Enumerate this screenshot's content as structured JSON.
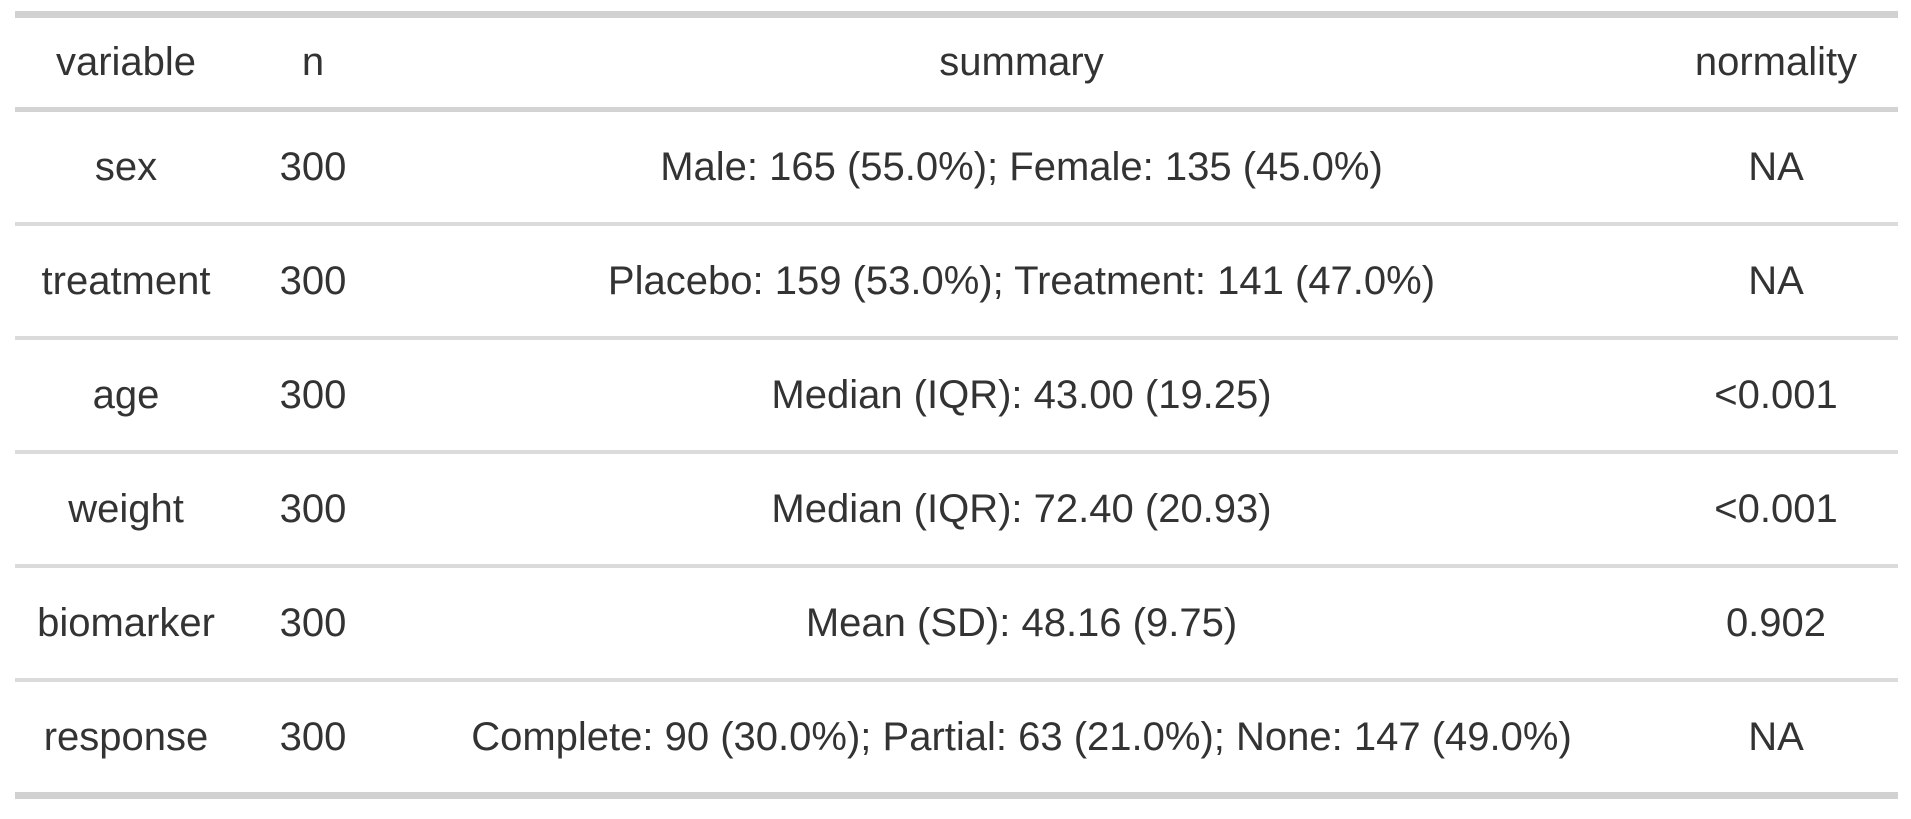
{
  "table": {
    "headers": [
      "variable",
      "n",
      "summary",
      "normality"
    ],
    "rows": [
      {
        "variable": "sex",
        "n": "300",
        "summary": "Male: 165 (55.0%); Female: 135 (45.0%)",
        "normality": "NA"
      },
      {
        "variable": "treatment",
        "n": "300",
        "summary": "Placebo: 159 (53.0%); Treatment: 141 (47.0%)",
        "normality": "NA"
      },
      {
        "variable": "age",
        "n": "300",
        "summary": "Median (IQR): 43.00 (19.25)",
        "normality": "<0.001"
      },
      {
        "variable": "weight",
        "n": "300",
        "summary": "Median (IQR): 72.40 (20.93)",
        "normality": "<0.001"
      },
      {
        "variable": "biomarker",
        "n": "300",
        "summary": "Mean (SD): 48.16 (9.75)",
        "normality": "0.902"
      },
      {
        "variable": "response",
        "n": "300",
        "summary": "Complete: 90 (30.0%); Partial: 63 (21.0%); None: 147 (49.0%)",
        "normality": "NA"
      }
    ]
  },
  "colors": {
    "text": "#333333",
    "outer_bar": "#d1d1d1",
    "header_rule": "#d3d3d3",
    "row_rule": "#dbdbdb",
    "background": "#ffffff"
  },
  "chart_data": {
    "type": "table",
    "columns": [
      "variable",
      "n",
      "summary",
      "normality"
    ],
    "rows": [
      [
        "sex",
        300,
        "Male: 165 (55.0%); Female: 135 (45.0%)",
        "NA"
      ],
      [
        "treatment",
        300,
        "Placebo: 159 (53.0%); Treatment: 141 (47.0%)",
        "NA"
      ],
      [
        "age",
        300,
        "Median (IQR): 43.00 (19.25)",
        "<0.001"
      ],
      [
        "weight",
        300,
        "Median (IQR): 72.40 (20.93)",
        "<0.001"
      ],
      [
        "biomarker",
        300,
        "Mean (SD): 48.16 (9.75)",
        "0.902"
      ],
      [
        "response",
        300,
        "Complete: 90 (30.0%); Partial: 63 (21.0%); None: 147 (49.0%)",
        "NA"
      ]
    ],
    "title": "",
    "notes": "Descriptive summary statistics table: categorical counts/percentages and continuous medians/means with Shapiro-type normality p-values"
  }
}
